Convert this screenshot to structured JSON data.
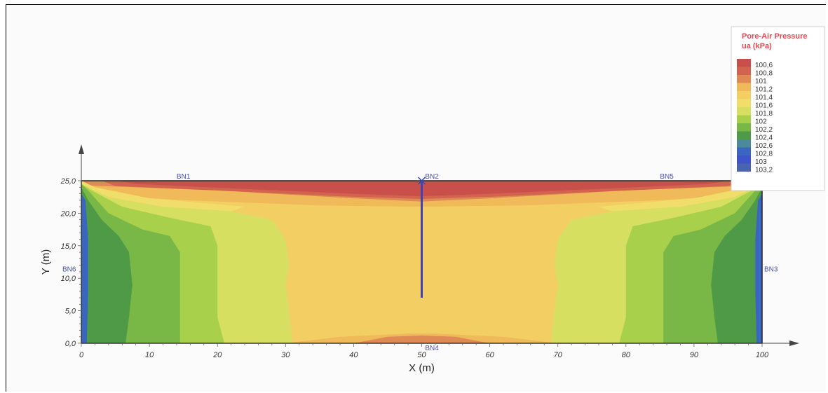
{
  "chart_data": {
    "type": "heatmap",
    "title": "",
    "xlabel": "X (m)",
    "ylabel": "Y (m)",
    "xlim": [
      0,
      100
    ],
    "ylim": [
      0,
      25
    ],
    "x_ticks": [
      0,
      10,
      20,
      30,
      40,
      50,
      60,
      70,
      80,
      90,
      100
    ],
    "x_tick_labels": [
      "0",
      "10",
      "20",
      "30",
      "40",
      "50",
      "60",
      "70",
      "80",
      "90",
      "100"
    ],
    "y_ticks": [
      0,
      5,
      10,
      15,
      20,
      25
    ],
    "y_tick_labels": [
      "0,0",
      "5,0",
      "10,0",
      "15,0",
      "20,0",
      "25,0"
    ],
    "legend": {
      "title_line1": "Pore-Air Pressure",
      "title_line2": "ua (kPa)",
      "placement": "top-right",
      "levels": [
        {
          "label": "100,6",
          "color": "#c9504a"
        },
        {
          "label": "100,8",
          "color": "#d2634f"
        },
        {
          "label": "101",
          "color": "#df8a55"
        },
        {
          "label": "101,2",
          "color": "#f0ba5a"
        },
        {
          "label": "101,4",
          "color": "#f3cf63"
        },
        {
          "label": "101,6",
          "color": "#f1de6a"
        },
        {
          "label": "101,8",
          "color": "#d7df60"
        },
        {
          "label": "102",
          "color": "#a8d04b"
        },
        {
          "label": "102,2",
          "color": "#79b747"
        },
        {
          "label": "102,4",
          "color": "#4e9a46"
        },
        {
          "label": "102,6",
          "color": "#4a8a9a"
        },
        {
          "label": "102,8",
          "color": "#3a66c2"
        },
        {
          "label": "103",
          "color": "#3e55c9"
        },
        {
          "label": "103,2",
          "color": "#4a64b0"
        }
      ]
    },
    "boundary_nodes": [
      {
        "label": "BN1",
        "x": 15,
        "y": 25
      },
      {
        "label": "BN2",
        "x": 51.5,
        "y": 25
      },
      {
        "label": "BN5",
        "x": 86,
        "y": 25
      },
      {
        "label": "BN6",
        "x": -1,
        "y": 11.5
      },
      {
        "label": "BN3",
        "x": 101.5,
        "y": 11.5
      },
      {
        "label": "BN4",
        "x": 51.5,
        "y": -0.5
      }
    ],
    "well": {
      "x": 50,
      "y_top": 25,
      "y_bottom": 7
    }
  }
}
